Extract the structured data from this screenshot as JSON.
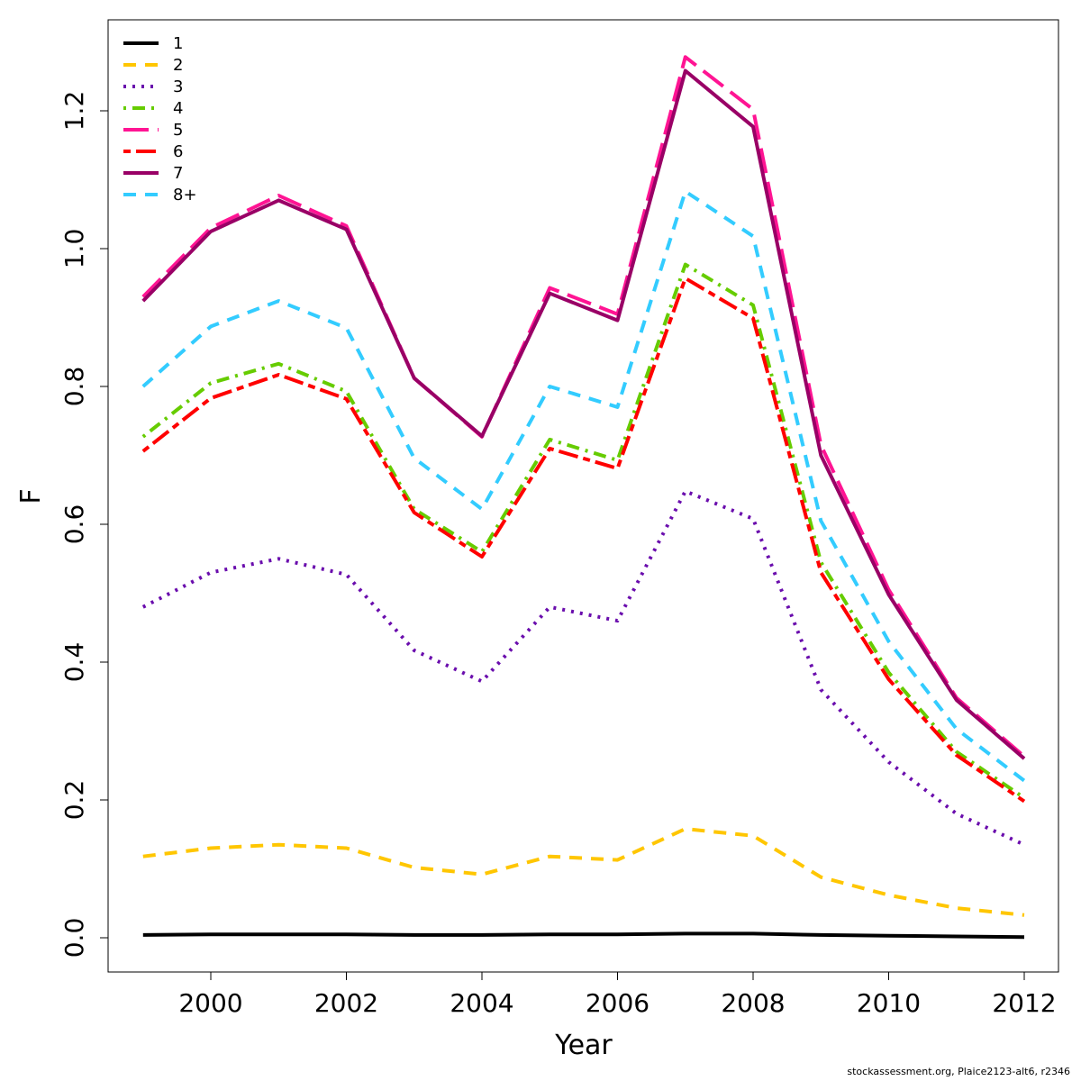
{
  "chart_data": {
    "type": "line",
    "xlabel": "Year",
    "ylabel": "F",
    "xlim": [
      1998.5,
      2012.5
    ],
    "ylim": [
      -0.05,
      1.33
    ],
    "x_ticks": [
      2000,
      2002,
      2004,
      2006,
      2008,
      2010,
      2012
    ],
    "y_ticks": [
      0.0,
      0.2,
      0.4,
      0.6,
      0.8,
      1.0,
      1.2
    ],
    "x_tick_labels": [
      "2000",
      "2002",
      "2004",
      "2006",
      "2008",
      "2010",
      "2012"
    ],
    "y_tick_labels": [
      "0.0",
      "0.2",
      "0.4",
      "0.6",
      "0.8",
      "1.0",
      "1.2"
    ],
    "x": [
      1999,
      2000,
      2001,
      2002,
      2003,
      2004,
      2005,
      2006,
      2007,
      2008,
      2009,
      2010,
      2011,
      2012
    ],
    "grid": false,
    "legend_position": "top-left",
    "series": [
      {
        "name": "1",
        "color": "#000000",
        "dash": "solid",
        "values": [
          0.004,
          0.005,
          0.005,
          0.005,
          0.004,
          0.004,
          0.005,
          0.005,
          0.006,
          0.006,
          0.004,
          0.003,
          0.002,
          0.001
        ]
      },
      {
        "name": "2",
        "color": "#FFC600",
        "dash": "dashed",
        "values": [
          0.118,
          0.13,
          0.135,
          0.13,
          0.102,
          0.092,
          0.118,
          0.113,
          0.158,
          0.148,
          0.088,
          0.062,
          0.043,
          0.033
        ]
      },
      {
        "name": "3",
        "color": "#6A0DAD",
        "dash": "dotted",
        "values": [
          0.48,
          0.53,
          0.55,
          0.527,
          0.417,
          0.372,
          0.48,
          0.46,
          0.648,
          0.608,
          0.36,
          0.255,
          0.18,
          0.135
        ]
      },
      {
        "name": "4",
        "color": "#66CC00",
        "dash": "dotdash",
        "values": [
          0.727,
          0.805,
          0.833,
          0.793,
          0.622,
          0.56,
          0.723,
          0.693,
          0.977,
          0.918,
          0.545,
          0.385,
          0.27,
          0.203
        ]
      },
      {
        "name": "5",
        "color": "#FF1493",
        "dash": "longdash",
        "values": [
          0.93,
          1.03,
          1.077,
          1.033,
          0.812,
          0.727,
          0.943,
          0.905,
          1.278,
          1.202,
          0.715,
          0.505,
          0.348,
          0.263
        ]
      },
      {
        "name": "6",
        "color": "#FF0000",
        "dash": "twodash",
        "values": [
          0.706,
          0.783,
          0.817,
          0.782,
          0.617,
          0.553,
          0.71,
          0.681,
          0.957,
          0.899,
          0.53,
          0.375,
          0.265,
          0.198
        ]
      },
      {
        "name": "7",
        "color": "#990066",
        "dash": "solid",
        "values": [
          0.924,
          1.025,
          1.07,
          1.028,
          0.812,
          0.728,
          0.935,
          0.896,
          1.258,
          1.177,
          0.7,
          0.498,
          0.345,
          0.26
        ]
      },
      {
        "name": "8+",
        "color": "#33CCFF",
        "dash": "dashed",
        "values": [
          0.8,
          0.887,
          0.924,
          0.885,
          0.696,
          0.622,
          0.8,
          0.77,
          1.083,
          1.018,
          0.605,
          0.43,
          0.303,
          0.228
        ]
      }
    ]
  },
  "footer": {
    "credit": "stockassessment.org, Plaice2123-alt6, r2346"
  }
}
